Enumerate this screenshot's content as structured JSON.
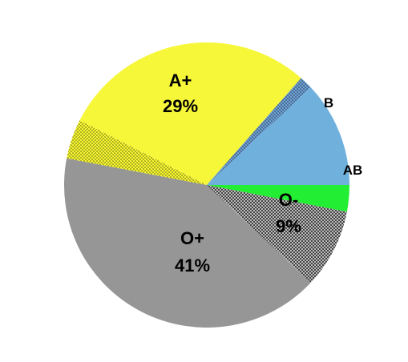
{
  "chart_data": {
    "type": "pie",
    "title": "",
    "slices": [
      {
        "key": "ab",
        "label": "AB",
        "percent_label": "",
        "value": 3,
        "color": "#22ee33",
        "pattern": "none"
      },
      {
        "key": "o-neg",
        "label": "O-",
        "percent_label": "9%",
        "value": 9,
        "color": "#999999",
        "pattern": "dots"
      },
      {
        "key": "o-pos",
        "label": "O+",
        "percent_label": "41%",
        "value": 41,
        "color": "#969696",
        "pattern": "none"
      },
      {
        "key": "a-neg",
        "label": "",
        "percent_label": "",
        "value": 4.5,
        "color": "#f7f72e",
        "pattern": "dots"
      },
      {
        "key": "a-pos",
        "label": "A+",
        "percent_label": "29%",
        "value": 29,
        "color": "#f7f73a",
        "pattern": "none"
      },
      {
        "key": "b-neg",
        "label": "",
        "percent_label": "",
        "value": 1.5,
        "color": "#6fa3d6",
        "pattern": "dots"
      },
      {
        "key": "b-pos",
        "label": "B",
        "percent_label": "",
        "value": 12,
        "color": "#6fb0dc",
        "pattern": "none"
      }
    ],
    "start_angle_deg": 0,
    "direction": "clockwise",
    "legend": "none"
  }
}
